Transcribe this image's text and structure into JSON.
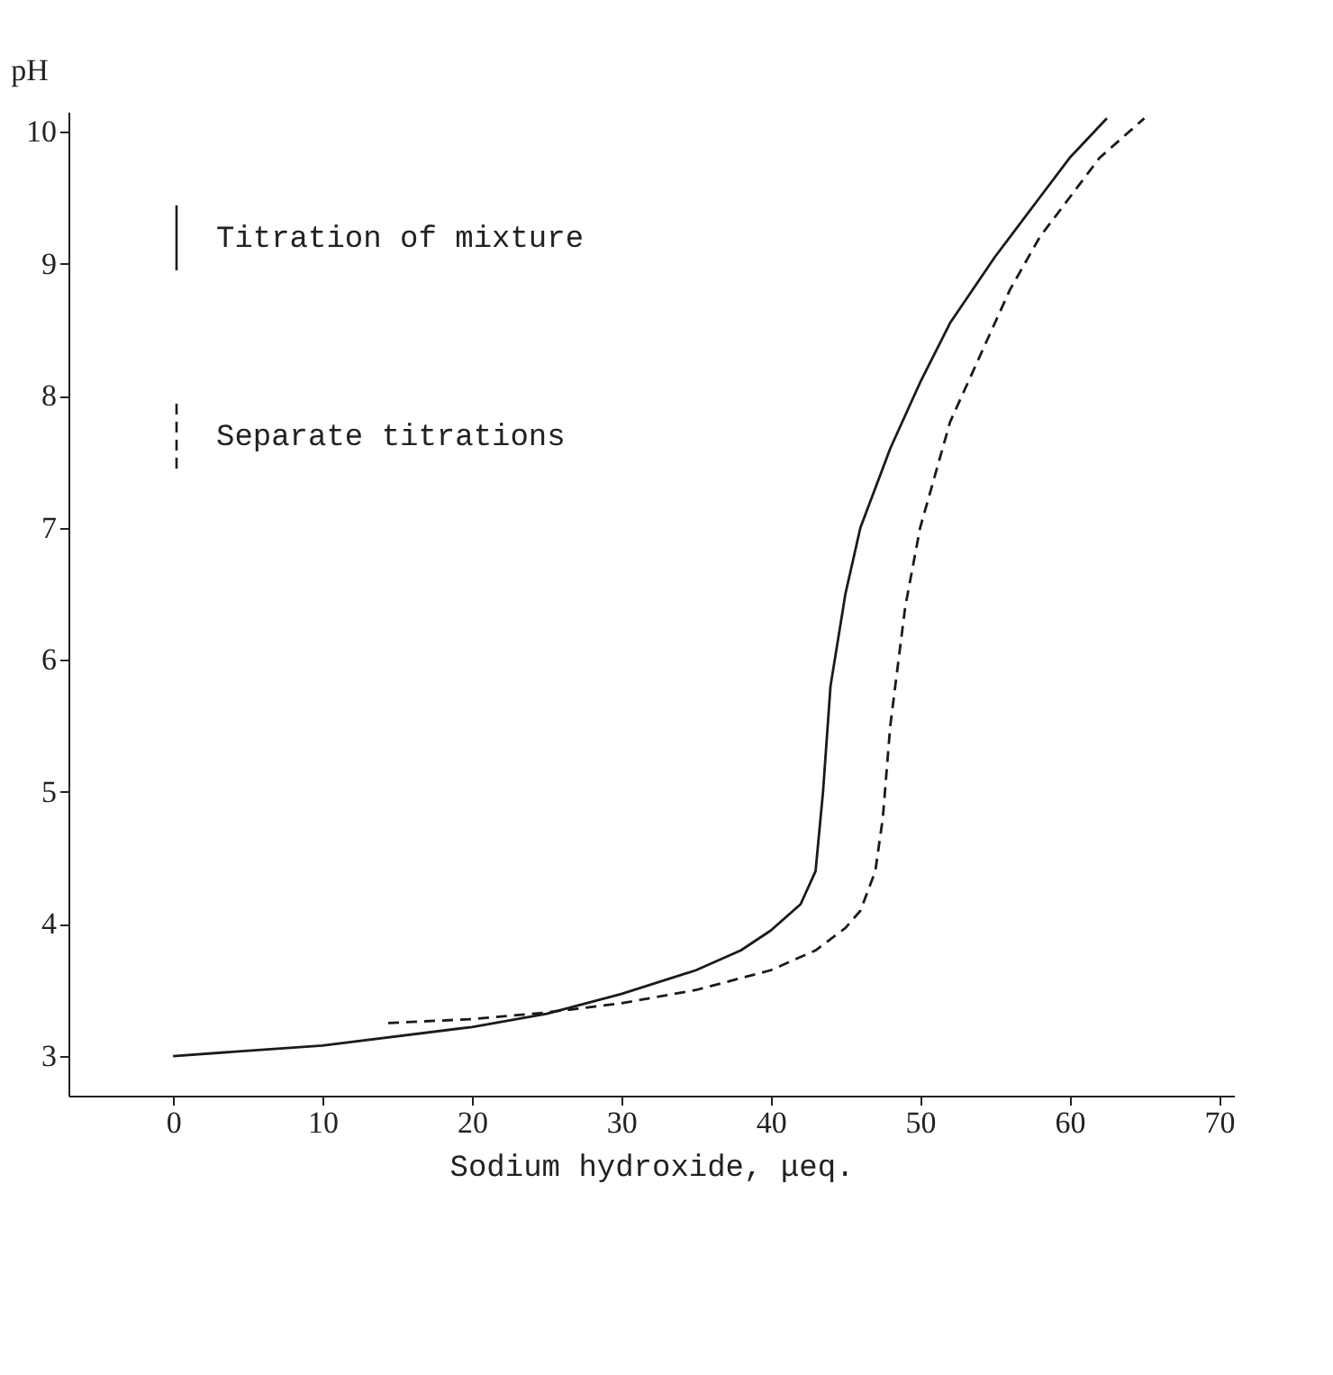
{
  "chart_data": {
    "type": "line",
    "xlabel": "Sodium hydroxide, μeq.",
    "ylabel": "pH",
    "xlim": [
      -7,
      71
    ],
    "xticks": [
      0,
      10,
      20,
      30,
      40,
      50,
      60,
      70
    ],
    "ylim": [
      2.7,
      10.15
    ],
    "yticks": [
      3,
      4,
      5,
      6,
      7,
      8,
      9,
      10
    ],
    "grid": false,
    "legend": "top left",
    "marker": "none",
    "series": [
      {
        "name": "Titration of mixture",
        "color": "#1a1a1a",
        "line_style": "solid",
        "x": [
          0,
          10,
          20,
          25,
          30,
          35,
          38,
          40,
          42,
          43,
          43.5,
          44,
          45,
          46,
          48,
          50,
          52,
          55,
          58,
          60,
          62.5
        ],
        "values": [
          3.0,
          3.08,
          3.22,
          3.32,
          3.47,
          3.65,
          3.8,
          3.95,
          4.15,
          4.4,
          5.0,
          5.8,
          6.5,
          7.0,
          7.6,
          8.1,
          8.55,
          9.05,
          9.5,
          9.8,
          10.1
        ]
      },
      {
        "name": "Separate titrations",
        "color": "#1a1a1a",
        "line_style": "dashed",
        "x": [
          14.4,
          20,
          25,
          30,
          35,
          40,
          43,
          45,
          46,
          47,
          47.5,
          48,
          49,
          50,
          52,
          54,
          56,
          58,
          60,
          62,
          65
        ],
        "values": [
          3.25,
          3.28,
          3.33,
          3.4,
          3.5,
          3.65,
          3.8,
          3.97,
          4.1,
          4.4,
          4.8,
          5.5,
          6.4,
          7.0,
          7.8,
          8.3,
          8.8,
          9.2,
          9.5,
          9.8,
          10.1
        ]
      }
    ]
  }
}
